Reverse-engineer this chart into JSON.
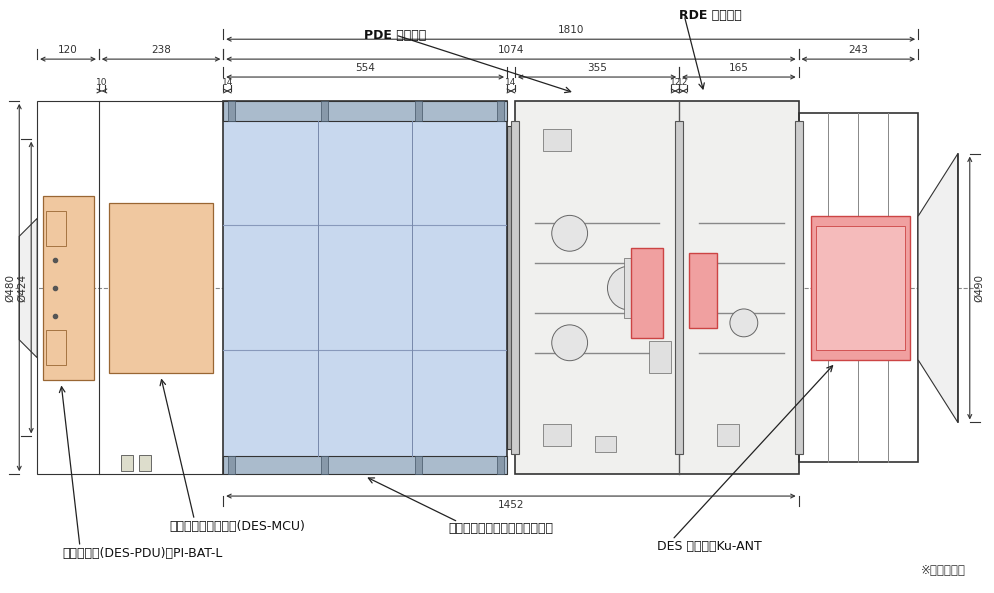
{
  "bg_color": "#ffffff",
  "line_color": "#333333",
  "blue_fill": "#c8d8ee",
  "peach_fill": "#f0c8a0",
  "pink_fill": "#f0a0a0",
  "fig_width": 9.95,
  "fig_height": 5.93,
  "note": "※寸法は概略",
  "label_pde_nozzle": "PDE ノズル部",
  "label_rde_nozzle": "RDE ノズル部",
  "label_des_mcu": "メインコンピュータ(DES-MCU)",
  "label_des_pdu": "電力分配器(DES-PDU)・PI-BAT-L",
  "label_tank": "メタン・酸素・窒素ガスタンク",
  "label_camera": "DES カメラ・Ku-ANT",
  "dim_1810": "1810",
  "dim_1452": "1452",
  "dim_1074": "1074",
  "dim_554": "554",
  "dim_355": "355",
  "dim_243": "243",
  "dim_165": "165",
  "dim_238": "238",
  "dim_120": "120",
  "dim_14a": "14",
  "dim_14b": "14",
  "dim_12a": "12",
  "dim_12b": "12",
  "dim_10": "10",
  "dim_480": "Ø480",
  "dim_424": "Ø424",
  "dim_490": "Ø490"
}
